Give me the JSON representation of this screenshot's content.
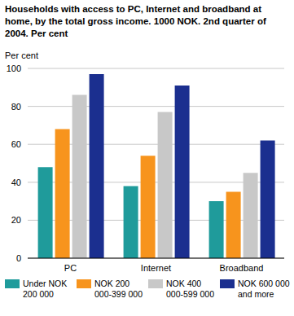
{
  "chart_data": {
    "type": "bar",
    "title": "Households with access to PC, Internet and broadband at home, by the total gross income. 1000 NOK. 2nd quarter of 2004. Per cent",
    "y_label": "Per cent",
    "categories": [
      "PC",
      "Internet",
      "Broadband"
    ],
    "series": [
      {
        "name": "Under NOK 200 000",
        "color": "#1f9b9b",
        "values": [
          48,
          38,
          30
        ]
      },
      {
        "name": "NOK 200 000-399 000",
        "color": "#f7941d",
        "values": [
          68,
          54,
          35
        ]
      },
      {
        "name": "NOK 400 000-599 000",
        "color": "#c8c8c8",
        "values": [
          86,
          77,
          45
        ]
      },
      {
        "name": "NOK 600 000 and more",
        "color": "#1b2f8f",
        "values": [
          97,
          91,
          62
        ]
      }
    ],
    "ylim": [
      0,
      100
    ],
    "yticks": [
      0,
      20,
      40,
      60,
      80,
      100
    ],
    "grid": true,
    "legend": "bottom"
  }
}
